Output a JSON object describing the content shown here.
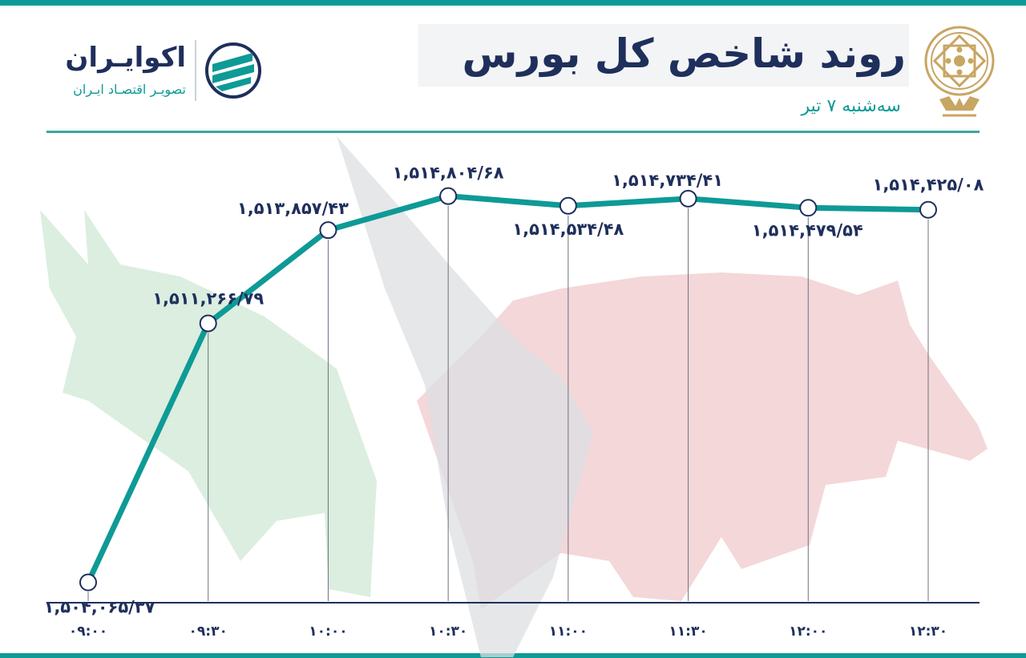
{
  "header": {
    "title": "روند شاخص کل بورس",
    "subtitle": "سه‌شنبه ۷ تیر"
  },
  "logo": {
    "name": "اکوایـران",
    "tagline": "تصویـر اقتصـاد ایـران"
  },
  "colors": {
    "line": "#0e9a96",
    "label": "#1f2f5c",
    "bull": "#d7ecdc",
    "bear": "#f3d3d5",
    "accent": "#0e9a96",
    "emblem": "#c9a563"
  },
  "chart_data": {
    "type": "line",
    "categories": [
      "۰۹:۰۰",
      "۰۹:۳۰",
      "۱۰:۰۰",
      "۱۰:۳۰",
      "۱۱:۰۰",
      "۱۱:۳۰",
      "۱۲:۰۰",
      "۱۲:۳۰"
    ],
    "values": [
      1504065.37,
      1511266.79,
      1513857.43,
      1514804.68,
      1514534.48,
      1514734.41,
      1514479.54,
      1514425.08
    ],
    "data_labels": [
      "۱,۵۰۴,۰۶۵/۳۷",
      "۱,۵۱۱,۲۶۶/۷۹",
      "۱,۵۱۳,۸۵۷/۴۳",
      "۱,۵۱۴,۸۰۴/۶۸",
      "۱,۵۱۴,۵۳۴/۴۸",
      "۱,۵۱۴,۷۳۴/۴۱",
      "۱,۵۱۴,۴۷۹/۵۴",
      "۱,۵۱۴,۴۲۵/۰۸"
    ],
    "title": "روند شاخص کل بورس",
    "subtitle": "سه‌شنبه ۷ تیر",
    "xlabel": "",
    "ylabel": "",
    "ylim": [
      1503500,
      1515800
    ],
    "grid": false,
    "legend": "none"
  }
}
